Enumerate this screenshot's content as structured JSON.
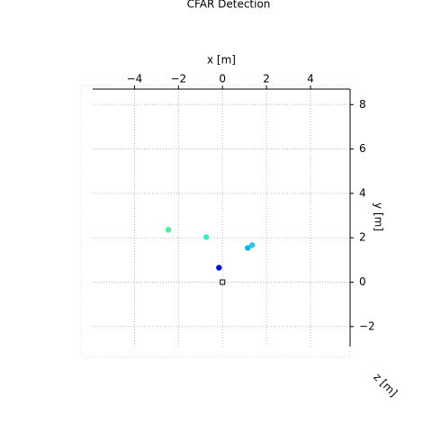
{
  "chart_data": {
    "type": "scatter",
    "title": "CFAR Detection",
    "x_label": "x [m]",
    "y_label": "y [m]",
    "z_label": "z [m]",
    "series": [
      {
        "marker": "circle",
        "x": [
          -2.46,
          -0.74,
          1.15,
          1.35,
          -0.16
        ],
        "y": [
          2.36,
          2.03,
          1.54,
          1.67,
          0.65
        ],
        "colors": [
          "#4ef0a0",
          "#33f5c0",
          "#00b8f0",
          "#1ec8f0",
          "#0010e0"
        ]
      },
      {
        "marker": "square",
        "x": [
          0
        ],
        "y": [
          0
        ],
        "color": "#000000"
      }
    ],
    "xlim": [
      -5.9,
      5.8
    ],
    "ylim": [
      -2.9,
      8.7
    ],
    "xticks": [
      {
        "value": -4,
        "label": "−4"
      },
      {
        "value": -2,
        "label": "−2"
      },
      0,
      2,
      4
    ],
    "yticks": [
      {
        "value": -2,
        "label": "−2"
      },
      0,
      2,
      4,
      6,
      8
    ],
    "grid": true
  }
}
